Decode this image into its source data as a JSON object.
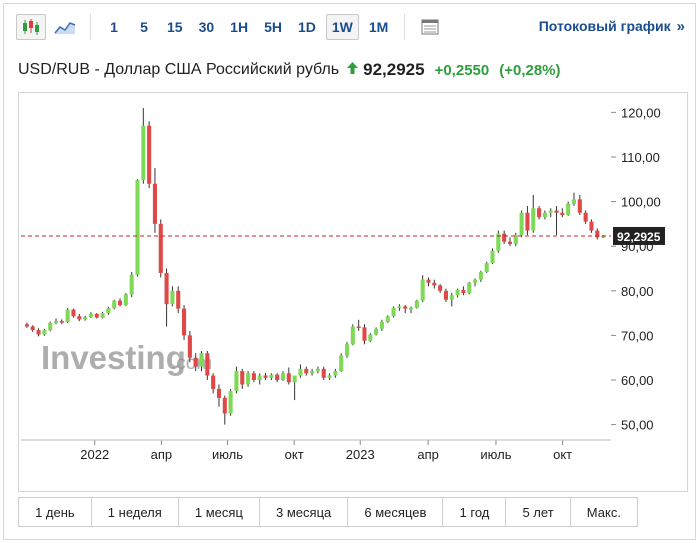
{
  "toolbar": {
    "icons": [
      "candlestick-icon",
      "area-chart-icon"
    ],
    "intervals": [
      "1",
      "5",
      "15",
      "30",
      "1H",
      "5H",
      "1D",
      "1W",
      "1M"
    ],
    "active_interval": "1W",
    "table_icon": "table-icon",
    "stream_label": "Потоковый график",
    "stream_arrows": "»"
  },
  "quote": {
    "name": "USD/RUB - Доллар США Российский рубль",
    "direction": "up",
    "price": "92,2925",
    "change": "+0,2550",
    "change_pct": "(+0,28%)",
    "up_color": "#2e9e3f",
    "down_color": "#e03a3a"
  },
  "watermark": {
    "text": "Investing",
    "suffix": ".com"
  },
  "period_buttons": [
    "1 день",
    "1 неделя",
    "1 месяц",
    "3 месяца",
    "6 месяцев",
    "1 год",
    "5 лет",
    "Макс."
  ],
  "chart_data": {
    "type": "candlestick",
    "x_labels": [
      "2022",
      "апр",
      "июль",
      "окт",
      "2023",
      "апр",
      "июль",
      "окт"
    ],
    "y_ticks": [
      "120,00",
      "110,00",
      "100,00",
      "90,00",
      "80,00",
      "70,00",
      "60,00",
      "50,00"
    ],
    "ylim": [
      47,
      123
    ],
    "current_price": 92.2925,
    "current_label": "92,2925",
    "current_line_color": "#cc2222",
    "up_color": "#7ed957",
    "down_color": "#e04848",
    "candles": [
      [
        72.5,
        72.9,
        71.7,
        72.0
      ],
      [
        72.0,
        72.3,
        70.8,
        71.2
      ],
      [
        71.2,
        71.6,
        69.8,
        70.2
      ],
      [
        70.2,
        71.5,
        69.9,
        71.2
      ],
      [
        71.2,
        73.1,
        70.9,
        72.8
      ],
      [
        72.8,
        73.8,
        72.5,
        73.2
      ],
      [
        73.2,
        73.6,
        72.5,
        73.0
      ],
      [
        73.0,
        76.2,
        72.8,
        75.8
      ],
      [
        75.8,
        76.0,
        74.0,
        74.3
      ],
      [
        74.3,
        74.8,
        73.2,
        73.6
      ],
      [
        73.6,
        74.4,
        73.3,
        74.1
      ],
      [
        74.1,
        75.2,
        73.9,
        74.8
      ],
      [
        74.8,
        75.0,
        73.8,
        74.0
      ],
      [
        74.0,
        75.3,
        73.8,
        75.0
      ],
      [
        75.0,
        76.4,
        74.6,
        76.1
      ],
      [
        76.1,
        78.0,
        75.8,
        77.8
      ],
      [
        77.8,
        78.3,
        76.5,
        76.8
      ],
      [
        76.8,
        79.5,
        76.6,
        79.2
      ],
      [
        79.2,
        84.2,
        78.6,
        83.6
      ],
      [
        83.6,
        105.0,
        83.2,
        104.8
      ],
      [
        104.8,
        121.0,
        104.0,
        117.0
      ],
      [
        117.0,
        118.0,
        103.0,
        104.0
      ],
      [
        104.0,
        107.5,
        93.0,
        95.0
      ],
      [
        95.0,
        96.0,
        83.0,
        84.0
      ],
      [
        84.0,
        85.0,
        72.0,
        77.0
      ],
      [
        77.0,
        81.0,
        76.5,
        80.0
      ],
      [
        80.0,
        81.0,
        75.0,
        76.0
      ],
      [
        76.0,
        76.8,
        69.0,
        70.0
      ],
      [
        70.0,
        71.0,
        64.0,
        65.0
      ],
      [
        65.0,
        66.0,
        62.0,
        63.0
      ],
      [
        63.0,
        66.5,
        62.0,
        66.0
      ],
      [
        66.0,
        66.5,
        60.0,
        61.0
      ],
      [
        61.0,
        61.5,
        57.0,
        58.0
      ],
      [
        58.0,
        59.0,
        54.0,
        56.0
      ],
      [
        56.0,
        56.5,
        50.0,
        52.5
      ],
      [
        52.5,
        58.0,
        52.0,
        57.5
      ],
      [
        57.5,
        63.0,
        57.0,
        62.0
      ],
      [
        62.0,
        62.5,
        58.0,
        59.0
      ],
      [
        59.0,
        62.0,
        58.5,
        61.5
      ],
      [
        61.5,
        62.0,
        59.5,
        60.0
      ],
      [
        60.0,
        61.5,
        59.0,
        61.0
      ],
      [
        61.0,
        61.6,
        60.0,
        60.5
      ],
      [
        60.5,
        61.5,
        60.0,
        61.2
      ],
      [
        61.2,
        61.5,
        59.5,
        60.0
      ],
      [
        60.0,
        62.0,
        59.8,
        61.5
      ],
      [
        61.5,
        62.8,
        59.0,
        59.5
      ],
      [
        59.5,
        60.5,
        55.5,
        61.0
      ],
      [
        61.0,
        63.5,
        60.5,
        62.5
      ],
      [
        62.5,
        63.0,
        61.0,
        61.5
      ],
      [
        61.5,
        62.5,
        61.0,
        62.0
      ],
      [
        62.0,
        63.0,
        61.5,
        62.5
      ],
      [
        62.5,
        63.0,
        60.0,
        60.5
      ],
      [
        60.5,
        61.5,
        60.0,
        61.0
      ],
      [
        61.0,
        62.5,
        60.5,
        62.0
      ],
      [
        62.0,
        66.0,
        61.8,
        65.5
      ],
      [
        65.5,
        68.5,
        65.0,
        68.0
      ],
      [
        68.0,
        72.5,
        67.8,
        72.0
      ],
      [
        72.0,
        73.5,
        71.0,
        71.8
      ],
      [
        71.8,
        72.5,
        68.0,
        68.8
      ],
      [
        68.8,
        70.5,
        68.5,
        70.2
      ],
      [
        70.2,
        71.8,
        70.0,
        71.5
      ],
      [
        71.5,
        73.5,
        71.0,
        73.0
      ],
      [
        73.0,
        74.5,
        72.8,
        74.3
      ],
      [
        74.3,
        76.5,
        74.0,
        76.2
      ],
      [
        76.2,
        77.0,
        75.5,
        76.5
      ],
      [
        76.5,
        76.8,
        75.0,
        76.0
      ],
      [
        76.0,
        76.5,
        75.0,
        76.2
      ],
      [
        76.2,
        78.0,
        76.0,
        77.8
      ],
      [
        77.8,
        83.5,
        77.5,
        82.5
      ],
      [
        82.5,
        83.0,
        81.0,
        81.8
      ],
      [
        81.8,
        82.5,
        80.5,
        81.2
      ],
      [
        81.2,
        81.5,
        79.5,
        80.0
      ],
      [
        80.0,
        80.5,
        77.5,
        78.0
      ],
      [
        78.0,
        79.5,
        76.5,
        79.0
      ],
      [
        79.0,
        80.5,
        78.5,
        80.2
      ],
      [
        80.2,
        81.0,
        79.0,
        79.5
      ],
      [
        79.5,
        82.0,
        79.2,
        81.8
      ],
      [
        81.8,
        82.8,
        81.0,
        82.5
      ],
      [
        82.5,
        84.5,
        82.0,
        84.2
      ],
      [
        84.2,
        86.5,
        84.0,
        86.2
      ],
      [
        86.2,
        89.5,
        86.0,
        89.0
      ],
      [
        89.0,
        93.5,
        88.5,
        92.8
      ],
      [
        92.8,
        93.5,
        90.5,
        91.0
      ],
      [
        91.0,
        92.0,
        90.0,
        90.5
      ],
      [
        90.5,
        93.0,
        90.0,
        92.5
      ],
      [
        92.5,
        98.0,
        92.0,
        97.5
      ],
      [
        97.5,
        99.0,
        92.5,
        93.5
      ],
      [
        93.5,
        101.5,
        93.0,
        98.5
      ],
      [
        98.5,
        99.0,
        96.0,
        96.5
      ],
      [
        96.5,
        98.0,
        96.0,
        97.5
      ],
      [
        97.5,
        98.5,
        96.5,
        98.0
      ],
      [
        98.0,
        99.0,
        92.5,
        97.5
      ],
      [
        97.5,
        98.5,
        96.5,
        97.0
      ],
      [
        97.0,
        100.0,
        96.8,
        99.5
      ],
      [
        99.5,
        102.0,
        99.0,
        100.5
      ],
      [
        100.5,
        101.5,
        97.0,
        97.5
      ],
      [
        97.5,
        98.0,
        95.0,
        95.5
      ],
      [
        95.5,
        96.0,
        93.0,
        93.5
      ],
      [
        93.5,
        94.0,
        91.5,
        92.0
      ],
      [
        92.0,
        92.5,
        91.8,
        92.2925
      ]
    ]
  }
}
